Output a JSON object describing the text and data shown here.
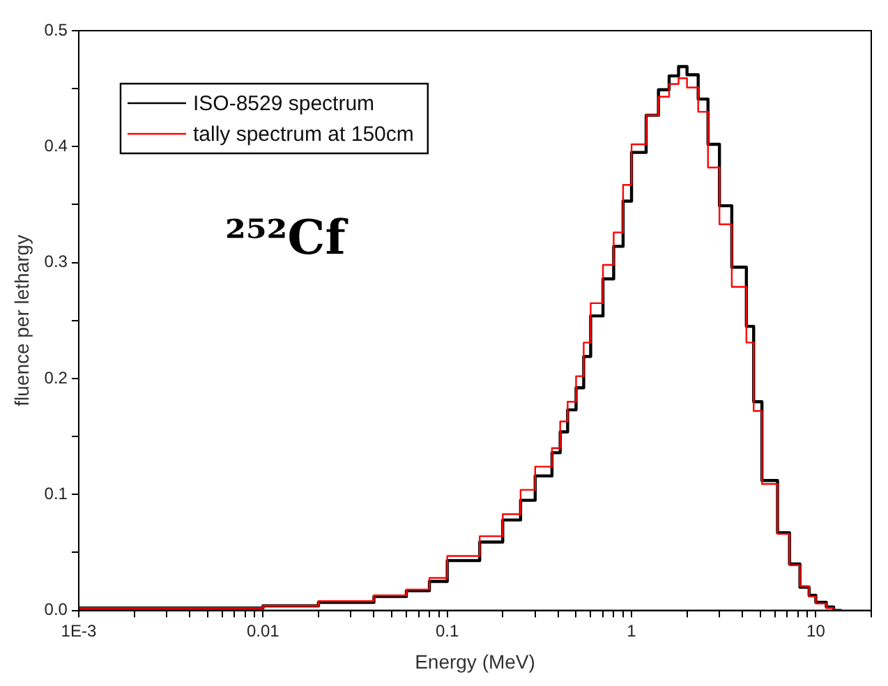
{
  "chart_data": {
    "type": "step",
    "xlabel": "Energy (MeV)",
    "ylabel": "fluence per lethargy",
    "annotations": [
      "²⁵²Cf"
    ],
    "x": [
      0.001,
      0.01,
      0.02,
      0.04,
      0.06,
      0.08,
      0.1,
      0.15,
      0.2,
      0.25,
      0.3,
      0.37,
      0.41,
      0.45,
      0.5,
      0.55,
      0.6,
      0.7,
      0.8,
      0.9,
      1.0,
      1.2,
      1.4,
      1.6,
      1.8,
      2.0,
      2.3,
      2.6,
      3.0,
      3.5,
      4.2,
      4.6,
      5.1,
      6.2,
      7.2,
      8.2,
      9.2,
      10,
      11.4,
      12.5,
      13.8
    ],
    "series": [
      {
        "name": "ISO-8529 spectrum",
        "color": "#000000",
        "values": [
          0,
          0.002,
          0.004,
          0.007,
          0.012,
          0.017,
          0.025,
          0.043,
          0.059,
          0.078,
          0.095,
          0.116,
          0.136,
          0.154,
          0.173,
          0.192,
          0.219,
          0.254,
          0.286,
          0.314,
          0.353,
          0.395,
          0.427,
          0.449,
          0.461,
          0.469,
          0.462,
          0.441,
          0.402,
          0.349,
          0.296,
          0.245,
          0.18,
          0.112,
          0.067,
          0.04,
          0.02,
          0.013,
          0.007,
          0.003,
          0
        ]
      },
      {
        "name": "tally spectrum at 150cm",
        "color": "#ff0000",
        "values": [
          0,
          0.002,
          0.004,
          0.008,
          0.013,
          0.018,
          0.028,
          0.047,
          0.064,
          0.083,
          0.104,
          0.124,
          0.14,
          0.163,
          0.18,
          0.202,
          0.231,
          0.265,
          0.298,
          0.326,
          0.367,
          0.402,
          0.427,
          0.443,
          0.454,
          0.459,
          0.451,
          0.43,
          0.382,
          0.333,
          0.279,
          0.231,
          0.172,
          0.109,
          0.066,
          0.039,
          0.021,
          0.012,
          0.006,
          0.002,
          0
        ]
      }
    ],
    "log": "x",
    "xlim": [
      0.001,
      20
    ],
    "xticks": [
      {
        "value": 0.001,
        "label": "1E-3"
      },
      {
        "value": 0.002,
        "label": null
      },
      {
        "value": 0.003,
        "label": null
      },
      {
        "value": 0.004,
        "label": null
      },
      {
        "value": 0.005,
        "label": null
      },
      {
        "value": 0.006,
        "label": null
      },
      {
        "value": 0.007,
        "label": null
      },
      {
        "value": 0.008,
        "label": null
      },
      {
        "value": 0.009,
        "label": null
      },
      0.01,
      {
        "value": 0.02,
        "label": null
      },
      {
        "value": 0.03,
        "label": null
      },
      {
        "value": 0.04,
        "label": null
      },
      {
        "value": 0.05,
        "label": null
      },
      {
        "value": 0.06,
        "label": null
      },
      {
        "value": 0.07,
        "label": null
      },
      {
        "value": 0.08,
        "label": null
      },
      {
        "value": 0.09,
        "label": null
      },
      0.1,
      {
        "value": 0.2,
        "label": null
      },
      {
        "value": 0.3,
        "label": null
      },
      {
        "value": 0.4,
        "label": null
      },
      {
        "value": 0.5,
        "label": null
      },
      {
        "value": 0.6,
        "label": null
      },
      {
        "value": 0.7,
        "label": null
      },
      {
        "value": 0.8,
        "label": null
      },
      {
        "value": 0.9,
        "label": null
      },
      1,
      {
        "value": 2,
        "label": null
      },
      {
        "value": 3,
        "label": null
      },
      {
        "value": 4,
        "label": null
      },
      {
        "value": 5,
        "label": null
      },
      {
        "value": 6,
        "label": null
      },
      {
        "value": 7,
        "label": null
      },
      {
        "value": 8,
        "label": null
      },
      {
        "value": 9,
        "label": null
      },
      10,
      {
        "value": 20,
        "label": null
      }
    ],
    "ylim": [
      0,
      0.5
    ],
    "yticks": [
      {
        "value": 0,
        "label": "0.0"
      },
      {
        "value": 0.05,
        "label": null
      },
      0.1,
      {
        "value": 0.15,
        "label": null
      },
      0.2,
      {
        "value": 0.25,
        "label": null
      },
      0.3,
      {
        "value": 0.35,
        "label": null
      },
      0.4,
      {
        "value": 0.45,
        "label": null
      },
      0.5
    ],
    "grid": false,
    "legend": "top left",
    "line_style": "solid",
    "marker": "none"
  }
}
